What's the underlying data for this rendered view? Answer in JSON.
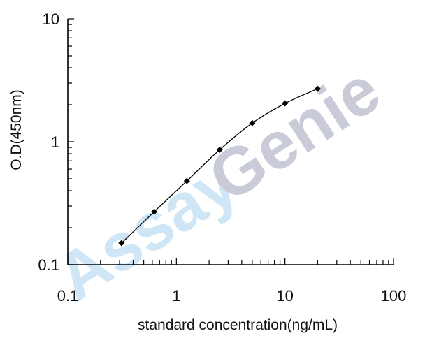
{
  "watermark": {
    "left": "Assay",
    "right": "Genie",
    "left_color": "#cfe6f6",
    "right_color": "#c9ccd8"
  },
  "chart_data": {
    "type": "line",
    "title": "",
    "xlabel": "standard concentration(ng/mL)",
    "ylabel": "O.D(450nm)",
    "xscale": "log",
    "yscale": "log",
    "xlim": [
      0.1,
      100
    ],
    "ylim": [
      0.1,
      10
    ],
    "xticks": [
      "0.1",
      "1",
      "10",
      "100"
    ],
    "yticks": [
      "0.1",
      "1",
      "10"
    ],
    "grid": false,
    "series": [
      {
        "x": [
          0.3125,
          0.625,
          1.25,
          2.5,
          5,
          10,
          20
        ],
        "y": [
          0.15,
          0.27,
          0.48,
          0.86,
          1.42,
          2.05,
          2.7
        ],
        "color": "#000000"
      }
    ]
  }
}
